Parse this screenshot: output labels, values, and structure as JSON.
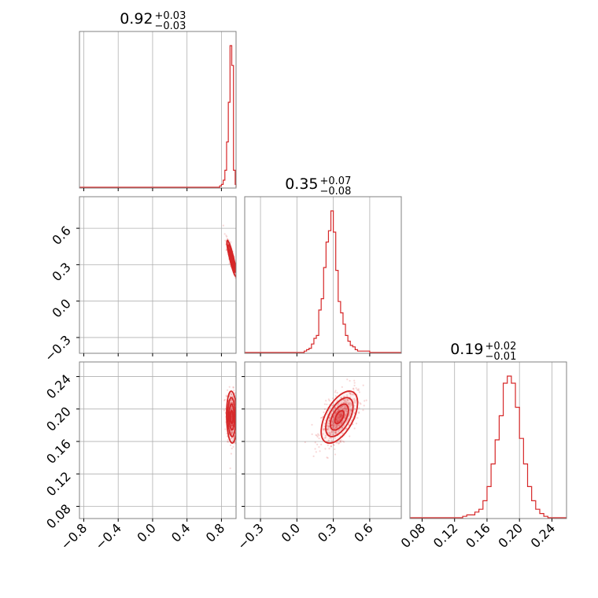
{
  "chart_data": {
    "type": "corner",
    "color": "#d62728",
    "grid": true,
    "parameters": [
      {
        "title": {
          "value": "0.92",
          "plus": "+0.03",
          "minus": "−0.03"
        },
        "range": [
          -0.85,
          0.97
        ],
        "ticks": [
          -0.8,
          -0.4,
          0.0,
          0.4,
          0.8
        ],
        "tick_labels": [
          "−0.8",
          "−0.4",
          "0.0",
          "0.4",
          "0.8"
        ],
        "histogram": {
          "edges": [
            0.78,
            0.8,
            0.82,
            0.84,
            0.86,
            0.88,
            0.9,
            0.92,
            0.94,
            0.96,
            0.97
          ],
          "counts": [
            0.01,
            0.02,
            0.05,
            0.12,
            0.32,
            0.6,
            1.0,
            0.86,
            0.12,
            0.02
          ]
        }
      },
      {
        "title": {
          "value": "0.35",
          "plus": "+0.07",
          "minus": "−0.08"
        },
        "range": [
          -0.43,
          0.86
        ],
        "ticks": [
          -0.3,
          0.0,
          0.3,
          0.6
        ],
        "tick_labels": [
          "−0.3",
          "0.0",
          "0.3",
          "0.6"
        ],
        "histogram": {
          "edges": [
            0.06,
            0.08,
            0.1,
            0.12,
            0.14,
            0.16,
            0.18,
            0.2,
            0.22,
            0.24,
            0.26,
            0.28,
            0.3,
            0.32,
            0.34,
            0.36,
            0.38,
            0.4,
            0.42,
            0.44,
            0.46,
            0.48,
            0.5,
            0.52,
            0.54,
            0.56,
            0.58,
            0.6
          ],
          "counts": [
            0.01,
            0.02,
            0.03,
            0.06,
            0.1,
            0.12,
            0.3,
            0.38,
            0.6,
            0.78,
            0.86,
            1.0,
            0.85,
            0.58,
            0.36,
            0.28,
            0.2,
            0.12,
            0.08,
            0.05,
            0.04,
            0.02,
            0.01,
            0.01,
            0.01,
            0.01,
            0.01
          ]
        }
      },
      {
        "title": {
          "value": "0.19",
          "plus": "+0.02",
          "minus": "−0.01"
        },
        "range": [
          0.065,
          0.258
        ],
        "ticks": [
          0.08,
          0.12,
          0.16,
          0.2,
          0.24
        ],
        "tick_labels": [
          "0.08",
          "0.12",
          "0.16",
          "0.20",
          "0.24"
        ],
        "histogram": {
          "edges": [
            0.13,
            0.135,
            0.14,
            0.145,
            0.15,
            0.155,
            0.16,
            0.165,
            0.17,
            0.175,
            0.18,
            0.185,
            0.19,
            0.195,
            0.2,
            0.205,
            0.21,
            0.215,
            0.22,
            0.225,
            0.23,
            0.235
          ],
          "counts": [
            0.01,
            0.02,
            0.02,
            0.04,
            0.06,
            0.12,
            0.22,
            0.38,
            0.55,
            0.72,
            0.95,
            1.0,
            0.95,
            0.78,
            0.56,
            0.38,
            0.22,
            0.12,
            0.06,
            0.03,
            0.01
          ]
        }
      }
    ]
  }
}
